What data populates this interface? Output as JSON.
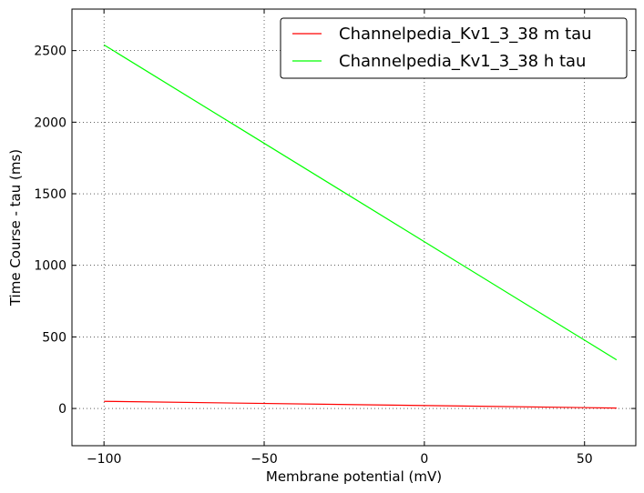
{
  "chart_data": {
    "type": "line",
    "xlabel": "Membrane potential (mV)",
    "ylabel": "Time Course - tau (ms)",
    "xlim": [
      -110,
      66
    ],
    "ylim": [
      -260,
      2790
    ],
    "xticks": [
      -100,
      -50,
      0,
      50
    ],
    "xtick_labels": [
      "−100",
      "−50",
      "0",
      "50"
    ],
    "yticks": [
      0,
      500,
      1000,
      1500,
      2000,
      2500
    ],
    "ytick_labels": [
      "0",
      "500",
      "1000",
      "1500",
      "2000",
      "2500"
    ],
    "grid": true,
    "legend_position": "top-right",
    "series": [
      {
        "name": "Channelpedia_Kv1_3_38 m tau",
        "color": "#ff0000",
        "x": [
          -100,
          60
        ],
        "y": [
          50,
          3
        ]
      },
      {
        "name": "Channelpedia_Kv1_3_38 h tau",
        "color": "#00ff00",
        "x": [
          -100,
          60
        ],
        "y": [
          2540,
          340
        ]
      }
    ]
  }
}
